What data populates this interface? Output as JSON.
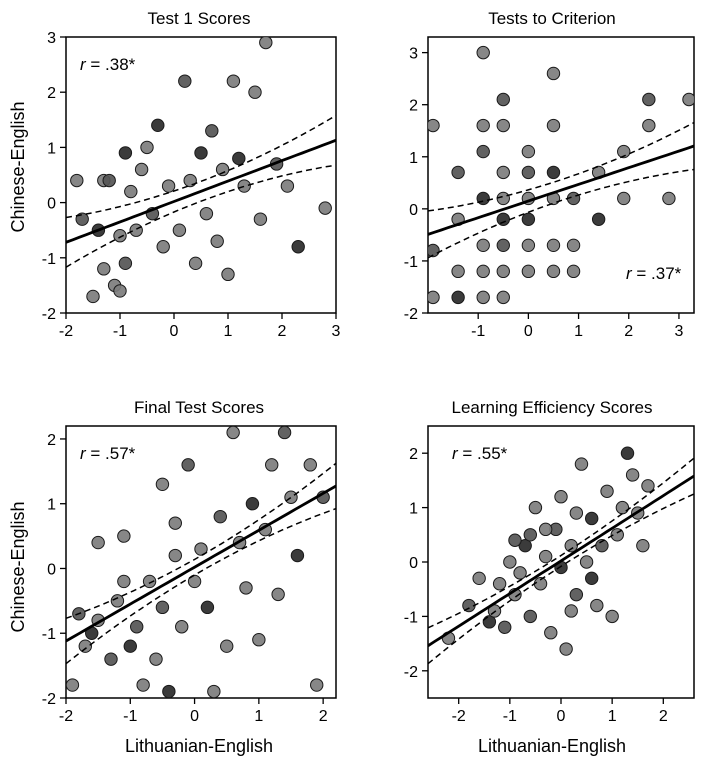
{
  "chart_data": [
    {
      "type": "scatter",
      "title": "Test 1 Scores",
      "xlabel": "",
      "ylabel": "Chinese-English",
      "xlim": [
        -2,
        3
      ],
      "ylim": [
        -2,
        3
      ],
      "xticks": [
        -2,
        -1,
        0,
        1,
        2,
        3
      ],
      "yticks": [
        -2,
        -1,
        0,
        1,
        2,
        3
      ],
      "annotation": {
        "prefix": "r",
        "text": " = .38*",
        "position": "top-left"
      },
      "fit": {
        "slope": 0.37,
        "intercept": 0.02,
        "ci_halfwidth": [
          0.18,
          0.45
        ]
      },
      "points": [
        {
          "x": -1.8,
          "y": 0.4
        },
        {
          "x": -1.7,
          "y": -0.3
        },
        {
          "x": -1.5,
          "y": -1.7
        },
        {
          "x": -1.4,
          "y": -0.5
        },
        {
          "x": -1.3,
          "y": -1.2
        },
        {
          "x": -1.3,
          "y": 0.4
        },
        {
          "x": -1.2,
          "y": 0.4
        },
        {
          "x": -1.1,
          "y": -1.5
        },
        {
          "x": -1.0,
          "y": -1.6
        },
        {
          "x": -1.0,
          "y": -0.6
        },
        {
          "x": -0.9,
          "y": 0.9
        },
        {
          "x": -0.9,
          "y": -1.1
        },
        {
          "x": -0.8,
          "y": 0.2
        },
        {
          "x": -0.7,
          "y": -0.5
        },
        {
          "x": -0.6,
          "y": 0.6
        },
        {
          "x": -0.5,
          "y": 1.0
        },
        {
          "x": -0.4,
          "y": -0.2
        },
        {
          "x": -0.3,
          "y": 1.4
        },
        {
          "x": -0.2,
          "y": -0.8
        },
        {
          "x": -0.1,
          "y": 0.3
        },
        {
          "x": 0.1,
          "y": -0.5
        },
        {
          "x": 0.2,
          "y": 2.2
        },
        {
          "x": 0.3,
          "y": 0.4
        },
        {
          "x": 0.4,
          "y": -1.1
        },
        {
          "x": 0.5,
          "y": 0.9
        },
        {
          "x": 0.6,
          "y": -0.2
        },
        {
          "x": 0.7,
          "y": 1.3
        },
        {
          "x": 0.8,
          "y": -0.7
        },
        {
          "x": 0.9,
          "y": 0.6
        },
        {
          "x": 1.0,
          "y": -1.3
        },
        {
          "x": 1.1,
          "y": 2.2
        },
        {
          "x": 1.2,
          "y": 0.8
        },
        {
          "x": 1.3,
          "y": 0.3
        },
        {
          "x": 1.5,
          "y": 2.0
        },
        {
          "x": 1.6,
          "y": -0.3
        },
        {
          "x": 1.7,
          "y": 2.9
        },
        {
          "x": 1.9,
          "y": 0.7
        },
        {
          "x": 2.1,
          "y": 0.3
        },
        {
          "x": 2.3,
          "y": -0.8
        },
        {
          "x": 2.8,
          "y": -0.1
        }
      ]
    },
    {
      "type": "scatter",
      "title": "Tests to Criterion",
      "xlabel": "",
      "ylabel": "",
      "xlim": [
        -2,
        3.3
      ],
      "ylim": [
        -2,
        3.3
      ],
      "xticks": [
        -1,
        0,
        1,
        2,
        3
      ],
      "yticks": [
        -2,
        -1,
        0,
        1,
        2,
        3
      ],
      "annotation": {
        "prefix": "r",
        "text": " = .37*",
        "position": "bottom-right"
      },
      "fit": {
        "slope": 0.32,
        "intercept": 0.15,
        "ci_halfwidth": [
          0.2,
          0.45
        ]
      },
      "points": [
        {
          "x": -1.9,
          "y": -1.7
        },
        {
          "x": -1.9,
          "y": -0.8
        },
        {
          "x": -1.9,
          "y": 1.6
        },
        {
          "x": -1.4,
          "y": -1.7
        },
        {
          "x": -1.4,
          "y": -1.2
        },
        {
          "x": -1.4,
          "y": -0.2
        },
        {
          "x": -1.4,
          "y": 0.7
        },
        {
          "x": -0.9,
          "y": -1.7
        },
        {
          "x": -0.9,
          "y": -1.2
        },
        {
          "x": -0.9,
          "y": -0.7
        },
        {
          "x": -0.9,
          "y": 0.2
        },
        {
          "x": -0.9,
          "y": 1.1
        },
        {
          "x": -0.9,
          "y": 1.6
        },
        {
          "x": -0.9,
          "y": 3.0
        },
        {
          "x": -0.5,
          "y": -1.7
        },
        {
          "x": -0.5,
          "y": -1.2
        },
        {
          "x": -0.5,
          "y": -0.7
        },
        {
          "x": -0.5,
          "y": -0.2
        },
        {
          "x": -0.5,
          "y": 0.2
        },
        {
          "x": -0.5,
          "y": 0.7
        },
        {
          "x": -0.5,
          "y": 1.6
        },
        {
          "x": -0.5,
          "y": 2.1
        },
        {
          "x": 0.0,
          "y": -1.2
        },
        {
          "x": 0.0,
          "y": -0.7
        },
        {
          "x": 0.0,
          "y": -0.2
        },
        {
          "x": 0.0,
          "y": 0.2
        },
        {
          "x": 0.0,
          "y": 0.7
        },
        {
          "x": 0.0,
          "y": 1.1
        },
        {
          "x": 0.5,
          "y": -1.2
        },
        {
          "x": 0.5,
          "y": -0.7
        },
        {
          "x": 0.5,
          "y": 0.2
        },
        {
          "x": 0.5,
          "y": 0.7
        },
        {
          "x": 0.5,
          "y": 1.6
        },
        {
          "x": 0.5,
          "y": 2.6
        },
        {
          "x": 0.9,
          "y": -1.2
        },
        {
          "x": 0.9,
          "y": -0.7
        },
        {
          "x": 0.9,
          "y": 0.2
        },
        {
          "x": 1.4,
          "y": 0.7
        },
        {
          "x": 1.4,
          "y": -0.2
        },
        {
          "x": 1.9,
          "y": 1.1
        },
        {
          "x": 1.9,
          "y": 0.2
        },
        {
          "x": 2.4,
          "y": 2.1
        },
        {
          "x": 2.4,
          "y": 1.6
        },
        {
          "x": 2.8,
          "y": 0.2
        },
        {
          "x": 3.2,
          "y": 2.1
        }
      ]
    },
    {
      "type": "scatter",
      "title": "Final Test Scores",
      "xlabel": "Lithuanian-English",
      "ylabel": "Chinese-English",
      "xlim": [
        -2,
        2.2
      ],
      "ylim": [
        -2,
        2.2
      ],
      "xticks": [
        -2,
        -1,
        0,
        1,
        2
      ],
      "yticks": [
        -2,
        -1,
        0,
        1,
        2
      ],
      "annotation": {
        "prefix": "r",
        "text": " = .57*",
        "position": "top-left"
      },
      "fit": {
        "slope": 0.57,
        "intercept": 0.02,
        "ci_halfwidth": [
          0.12,
          0.35
        ]
      },
      "points": [
        {
          "x": -1.9,
          "y": -1.8
        },
        {
          "x": -1.8,
          "y": -0.7
        },
        {
          "x": -1.7,
          "y": -1.2
        },
        {
          "x": -1.6,
          "y": -1.0
        },
        {
          "x": -1.5,
          "y": -0.8
        },
        {
          "x": -1.5,
          "y": 0.4
        },
        {
          "x": -1.3,
          "y": -1.4
        },
        {
          "x": -1.2,
          "y": -0.5
        },
        {
          "x": -1.1,
          "y": 0.5
        },
        {
          "x": -1.1,
          "y": -0.2
        },
        {
          "x": -1.0,
          "y": -1.2
        },
        {
          "x": -0.9,
          "y": -0.9
        },
        {
          "x": -0.8,
          "y": -1.8
        },
        {
          "x": -0.7,
          "y": -0.2
        },
        {
          "x": -0.6,
          "y": -1.4
        },
        {
          "x": -0.5,
          "y": 1.3
        },
        {
          "x": -0.5,
          "y": -0.6
        },
        {
          "x": -0.4,
          "y": -1.9
        },
        {
          "x": -0.3,
          "y": 0.2
        },
        {
          "x": -0.3,
          "y": 0.7
        },
        {
          "x": -0.2,
          "y": -0.9
        },
        {
          "x": -0.1,
          "y": 1.6
        },
        {
          "x": 0.0,
          "y": -0.2
        },
        {
          "x": 0.1,
          "y": 0.3
        },
        {
          "x": 0.2,
          "y": -0.6
        },
        {
          "x": 0.3,
          "y": -1.9
        },
        {
          "x": 0.4,
          "y": 0.8
        },
        {
          "x": 0.5,
          "y": -1.2
        },
        {
          "x": 0.6,
          "y": 2.1
        },
        {
          "x": 0.7,
          "y": 0.4
        },
        {
          "x": 0.8,
          "y": -0.3
        },
        {
          "x": 0.9,
          "y": 1.0
        },
        {
          "x": 1.0,
          "y": -1.1
        },
        {
          "x": 1.1,
          "y": 0.6
        },
        {
          "x": 1.2,
          "y": 1.6
        },
        {
          "x": 1.3,
          "y": -0.4
        },
        {
          "x": 1.4,
          "y": 2.1
        },
        {
          "x": 1.5,
          "y": 1.1
        },
        {
          "x": 1.6,
          "y": 0.2
        },
        {
          "x": 1.8,
          "y": 1.6
        },
        {
          "x": 1.9,
          "y": -1.8
        },
        {
          "x": 2.0,
          "y": 1.1
        }
      ]
    },
    {
      "type": "scatter",
      "title": "Learning Efficiency Scores",
      "xlabel": "Lithuanian-English",
      "ylabel": "",
      "xlim": [
        -2.6,
        2.6
      ],
      "ylim": [
        -2.5,
        2.5
      ],
      "xticks": [
        -2,
        -1,
        0,
        1,
        2
      ],
      "yticks": [
        -2,
        -1,
        0,
        1,
        2
      ],
      "annotation": {
        "prefix": "r",
        "text": " = .55*",
        "position": "top-left"
      },
      "fit": {
        "slope": 0.6,
        "intercept": 0.02,
        "ci_halfwidth": [
          0.1,
          0.33
        ]
      },
      "points": [
        {
          "x": -2.2,
          "y": -1.4
        },
        {
          "x": -1.8,
          "y": -0.8
        },
        {
          "x": -1.6,
          "y": -0.3
        },
        {
          "x": -1.4,
          "y": -1.1
        },
        {
          "x": -1.3,
          "y": -0.9
        },
        {
          "x": -1.2,
          "y": -0.4
        },
        {
          "x": -1.1,
          "y": -1.2
        },
        {
          "x": -1.0,
          "y": 0.0
        },
        {
          "x": -0.9,
          "y": -0.6
        },
        {
          "x": -0.8,
          "y": -0.2
        },
        {
          "x": -0.7,
          "y": 0.3
        },
        {
          "x": -0.6,
          "y": -1.0
        },
        {
          "x": -0.5,
          "y": 1.0
        },
        {
          "x": -0.4,
          "y": -0.4
        },
        {
          "x": -0.3,
          "y": 0.1
        },
        {
          "x": -0.2,
          "y": -1.3
        },
        {
          "x": -0.1,
          "y": 0.6
        },
        {
          "x": 0.0,
          "y": -0.1
        },
        {
          "x": 0.0,
          "y": 1.2
        },
        {
          "x": 0.1,
          "y": -1.6
        },
        {
          "x": 0.2,
          "y": 0.3
        },
        {
          "x": 0.3,
          "y": -0.6
        },
        {
          "x": 0.4,
          "y": 1.8
        },
        {
          "x": 0.5,
          "y": 0.0
        },
        {
          "x": 0.6,
          "y": 0.8
        },
        {
          "x": 0.7,
          "y": -0.8
        },
        {
          "x": 0.8,
          "y": 0.3
        },
        {
          "x": 0.9,
          "y": 1.3
        },
        {
          "x": 1.0,
          "y": -1.0
        },
        {
          "x": 1.1,
          "y": 0.5
        },
        {
          "x": 1.2,
          "y": 1.0
        },
        {
          "x": 1.3,
          "y": 2.0
        },
        {
          "x": 1.4,
          "y": 1.6
        },
        {
          "x": 1.5,
          "y": 0.9
        },
        {
          "x": 1.6,
          "y": 0.3
        },
        {
          "x": 1.7,
          "y": 1.4
        },
        {
          "x": -0.6,
          "y": 0.5
        },
        {
          "x": 0.3,
          "y": 0.9
        },
        {
          "x": 0.6,
          "y": -0.3
        },
        {
          "x": -0.3,
          "y": 0.6
        },
        {
          "x": 0.2,
          "y": -0.9
        },
        {
          "x": -0.9,
          "y": 0.4
        }
      ]
    }
  ]
}
